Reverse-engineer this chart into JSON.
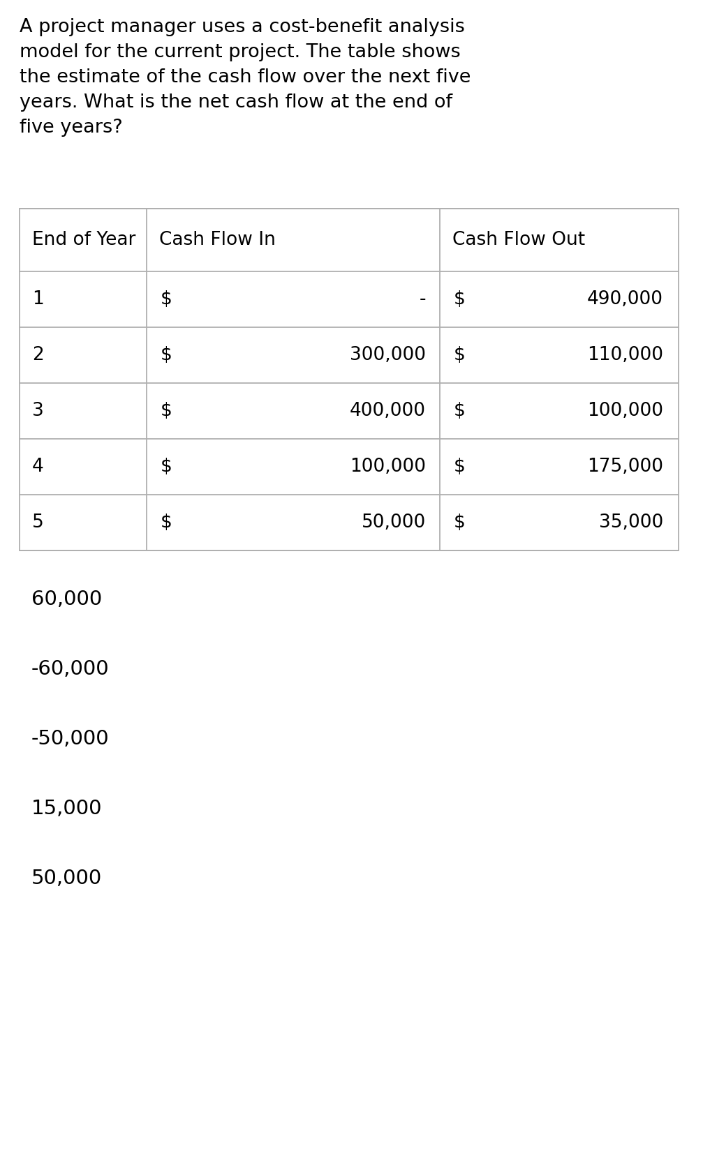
{
  "question_text": "A project manager uses a cost-benefit analysis\nmodel for the current project. The table shows\nthe estimate of the cash flow over the next five\nyears. What is the net cash flow at the end of\nfive years?",
  "headers": [
    "End of Year",
    "Cash Flow In",
    "Cash Flow Out"
  ],
  "rows": [
    [
      "1",
      "$",
      "-",
      "$",
      "490,000"
    ],
    [
      "2",
      "$",
      "300,000",
      "$",
      "110,000"
    ],
    [
      "3",
      "$",
      "400,000",
      "$",
      "100,000"
    ],
    [
      "4",
      "$",
      "100,000",
      "$",
      "175,000"
    ],
    [
      "5",
      "$",
      "50,000",
      "$",
      "35,000"
    ]
  ],
  "below_values": [
    "60,000",
    "-60,000",
    "-50,000",
    "15,000",
    "50,000"
  ],
  "background_color": "#ffffff",
  "text_color": "#000000",
  "line_color": "#b0b0b0",
  "question_fontsize": 19.5,
  "table_fontsize": 19,
  "below_fontsize": 21
}
